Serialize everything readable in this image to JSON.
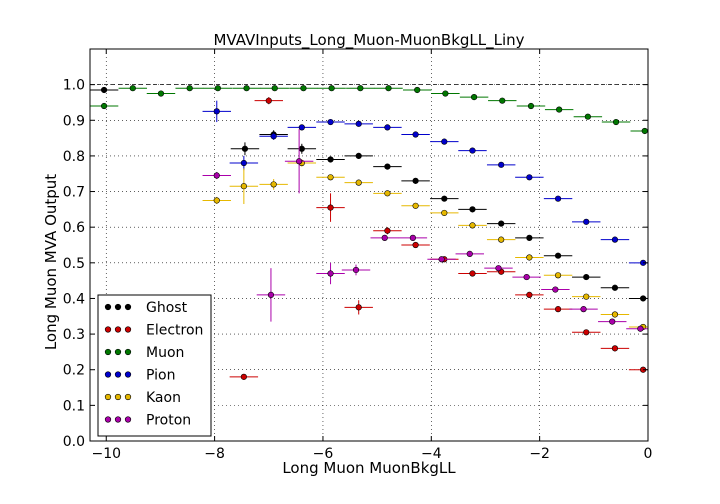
{
  "chart_data": {
    "type": "scatter",
    "title": "MVAVInputs_Long_Muon-MuonBkgLL_Liny",
    "xlabel": "Long Muon MuonBkgLL",
    "ylabel": "Long Muon MVA Output",
    "xlim": [
      -10.3,
      0
    ],
    "ylim": [
      0,
      1.1
    ],
    "xticks": [
      -10,
      -8,
      -6,
      -4,
      -2,
      0
    ],
    "xtick_labels": [
      "−10",
      "−8",
      "−6",
      "−4",
      "−2",
      "0"
    ],
    "yticks": [
      0.0,
      0.1,
      0.2,
      0.3,
      0.4,
      0.5,
      0.6,
      0.7,
      0.8,
      0.9,
      1.0
    ],
    "ytick_labels": [
      "0.0",
      "0.1",
      "0.2",
      "0.3",
      "0.4",
      "0.5",
      "0.6",
      "0.7",
      "0.8",
      "0.9",
      "1.0"
    ],
    "grid": true,
    "reference_line": 1.0,
    "legend_position": "lower-left",
    "bin_half_width": 0.2625,
    "series": [
      {
        "name": "Ghost",
        "color": "#000000",
        "x": [
          -10.04,
          -7.44,
          -6.91,
          -6.39,
          -5.86,
          -5.34,
          -4.81,
          -4.29,
          -3.76,
          -3.24,
          -2.71,
          -2.19,
          -1.66,
          -1.14,
          -0.61,
          -0.09
        ],
        "y": [
          0.985,
          0.82,
          0.86,
          0.82,
          0.79,
          0.8,
          0.77,
          0.73,
          0.68,
          0.65,
          0.61,
          0.57,
          0.52,
          0.46,
          0.43,
          0.4
        ],
        "yerr": [
          0.004,
          0.018,
          0.012,
          0.014,
          0.008,
          0.006,
          0.005,
          0.005,
          0.005,
          0.005,
          0.005,
          0.005,
          0.005,
          0.005,
          0.005,
          0.005
        ]
      },
      {
        "name": "Electron",
        "color": "#cc0000",
        "x": [
          -7.46,
          -7.0,
          -5.86,
          -5.34,
          -4.81,
          -4.29,
          -3.76,
          -3.24,
          -2.71,
          -2.19,
          -1.66,
          -1.14,
          -0.61,
          -0.09
        ],
        "y": [
          0.18,
          0.955,
          0.655,
          0.375,
          0.59,
          0.55,
          0.51,
          0.47,
          0.475,
          0.41,
          0.37,
          0.305,
          0.26,
          0.2
        ],
        "yerr": [
          0.005,
          0.01,
          0.04,
          0.02,
          0.01,
          0.008,
          0.006,
          0.005,
          0.005,
          0.005,
          0.005,
          0.005,
          0.005,
          0.005
        ]
      },
      {
        "name": "Muon",
        "color": "#007700",
        "x": [
          -10.04,
          -9.51,
          -8.99,
          -8.46,
          -7.94,
          -7.41,
          -6.89,
          -6.36,
          -5.84,
          -5.31,
          -4.79,
          -4.26,
          -3.74,
          -3.21,
          -2.69,
          -2.16,
          -1.64,
          -1.11,
          -0.59,
          -0.06
        ],
        "y": [
          0.94,
          0.99,
          0.975,
          0.99,
          0.99,
          0.99,
          0.99,
          0.99,
          0.99,
          0.99,
          0.99,
          0.985,
          0.975,
          0.965,
          0.955,
          0.94,
          0.93,
          0.91,
          0.895,
          0.87
        ],
        "yerr": [
          0.003,
          0.002,
          0.002,
          0.002,
          0.002,
          0.002,
          0.002,
          0.002,
          0.002,
          0.002,
          0.002,
          0.002,
          0.002,
          0.002,
          0.002,
          0.002,
          0.002,
          0.002,
          0.002,
          0.002
        ]
      },
      {
        "name": "Pion",
        "color": "#0000cc",
        "x": [
          -7.96,
          -7.46,
          -6.91,
          -6.39,
          -5.86,
          -5.34,
          -4.81,
          -4.29,
          -3.76,
          -3.24,
          -2.71,
          -2.19,
          -1.66,
          -1.14,
          -0.61,
          -0.09
        ],
        "y": [
          0.925,
          0.78,
          0.855,
          0.88,
          0.895,
          0.89,
          0.88,
          0.86,
          0.84,
          0.815,
          0.775,
          0.74,
          0.68,
          0.615,
          0.565,
          0.5
        ],
        "yerr": [
          0.03,
          0.02,
          0.01,
          0.006,
          0.004,
          0.004,
          0.004,
          0.004,
          0.004,
          0.004,
          0.004,
          0.004,
          0.004,
          0.004,
          0.004,
          0.004
        ]
      },
      {
        "name": "Kaon",
        "color": "#e6b800",
        "x": [
          -7.96,
          -7.46,
          -6.91,
          -6.39,
          -5.86,
          -5.34,
          -4.81,
          -4.29,
          -3.76,
          -3.24,
          -2.71,
          -2.19,
          -1.66,
          -1.14,
          -0.61,
          -0.09
        ],
        "y": [
          0.675,
          0.715,
          0.72,
          0.78,
          0.74,
          0.725,
          0.695,
          0.66,
          0.64,
          0.605,
          0.565,
          0.515,
          0.465,
          0.405,
          0.355,
          0.32
        ],
        "yerr": [
          0.01,
          0.05,
          0.015,
          0.01,
          0.006,
          0.005,
          0.005,
          0.005,
          0.005,
          0.005,
          0.005,
          0.005,
          0.005,
          0.005,
          0.005,
          0.005
        ]
      },
      {
        "name": "Proton",
        "color": "#aa00aa",
        "x": [
          -7.96,
          -6.96,
          -6.44,
          -5.86,
          -5.39,
          -4.86,
          -4.34,
          -3.81,
          -3.29,
          -2.76,
          -2.24,
          -1.71,
          -1.19,
          -0.66,
          -0.14
        ],
        "y": [
          0.745,
          0.41,
          0.785,
          0.47,
          0.48,
          0.57,
          0.57,
          0.51,
          0.525,
          0.485,
          0.46,
          0.425,
          0.37,
          0.335,
          0.315
        ],
        "yerr": [
          0.01,
          0.075,
          0.09,
          0.03,
          0.015,
          0.008,
          0.006,
          0.005,
          0.005,
          0.005,
          0.005,
          0.005,
          0.005,
          0.005,
          0.005
        ]
      }
    ]
  }
}
